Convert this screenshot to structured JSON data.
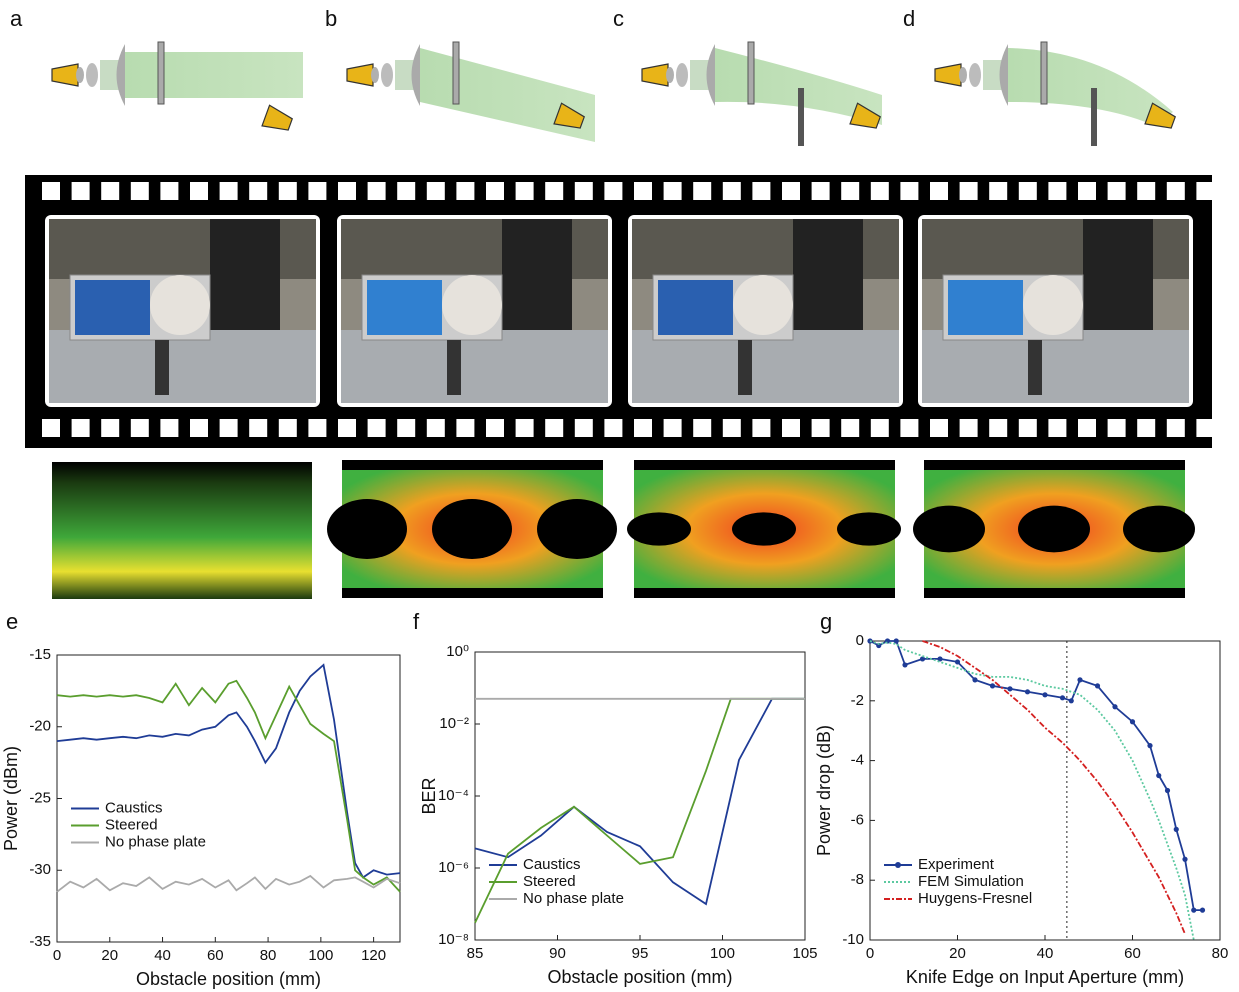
{
  "panel_labels": [
    "a",
    "b",
    "c",
    "d",
    "e",
    "f",
    "g"
  ],
  "chart_data": [
    {
      "type": "line",
      "xlabel": "Obstacle position (mm)",
      "ylabel": "Power (dBm)",
      "x": [
        0,
        5,
        10,
        15,
        20,
        25,
        30,
        35,
        40,
        45,
        50,
        55,
        60,
        65,
        68,
        72,
        75,
        79,
        83,
        88,
        92,
        96,
        101,
        105,
        110,
        113,
        116,
        120,
        125,
        130
      ],
      "xlim": [
        0,
        130
      ],
      "xticks": [
        0,
        20,
        40,
        60,
        80,
        100,
        120
      ],
      "ylim": [
        -35,
        -15
      ],
      "yticks": [
        -35,
        -30,
        -25,
        -20,
        -15
      ],
      "log": false,
      "legend": "center left",
      "series": [
        {
          "name": "Caustics",
          "color": "#1f3c96",
          "values": [
            -21,
            -20.9,
            -20.8,
            -20.9,
            -20.8,
            -20.7,
            -20.8,
            -20.6,
            -20.7,
            -20.5,
            -20.6,
            -20.2,
            -20.0,
            -19.2,
            -19.0,
            -20.0,
            -21.0,
            -22.5,
            -21.5,
            -19.0,
            -17.5,
            -16.5,
            -15.7,
            -19.5,
            -26,
            -29.5,
            -30.5,
            -30.0,
            -30.3,
            -30.2
          ]
        },
        {
          "name": "Steered",
          "color": "#5a9e2e",
          "values": [
            -17.8,
            -17.9,
            -17.8,
            -17.9,
            -17.8,
            -17.9,
            -17.8,
            -18.0,
            -18.3,
            -17.0,
            -18.5,
            -17.3,
            -18.3,
            -17.0,
            -16.8,
            -18.0,
            -19.0,
            -20.8,
            -19.2,
            -17.2,
            -18.5,
            -19.8,
            -20.5,
            -21.0,
            -26.5,
            -30.0,
            -30.5,
            -31.0,
            -30.5,
            -31.5
          ]
        },
        {
          "name": "No phase plate",
          "color": "#aaaaaa",
          "values": [
            -31.5,
            -30.8,
            -31.2,
            -30.6,
            -31.4,
            -30.9,
            -31.1,
            -30.5,
            -31.3,
            -30.8,
            -31.0,
            -30.6,
            -31.2,
            -30.7,
            -31.4,
            -30.9,
            -30.5,
            -31.3,
            -30.6,
            -31.0,
            -30.8,
            -30.4,
            -31.2,
            -30.7,
            -30.6,
            -30.5,
            -30.8,
            -31.2,
            -30.6,
            -30.9
          ]
        }
      ]
    },
    {
      "type": "line",
      "xlabel": "Obstacle position (mm)",
      "ylabel": "BER",
      "x": [
        85,
        87,
        89,
        91,
        93,
        95,
        97,
        99,
        100.5,
        101,
        103,
        105
      ],
      "xlim": [
        85,
        105
      ],
      "xticks": [
        85,
        90,
        95,
        100,
        105
      ],
      "ylim": [
        1e-08,
        1
      ],
      "log": true,
      "legend": "lower left",
      "yticks": [
        {
          "value": 1e-08,
          "label": "10⁻⁸"
        },
        {
          "value": 1e-06,
          "label": "10⁻⁶"
        },
        {
          "value": 0.0001,
          "label": "10⁻⁴"
        },
        {
          "value": 0.01,
          "label": "10⁻²"
        },
        {
          "value": 1,
          "label": "10⁰"
        }
      ],
      "series": [
        {
          "name": "Caustics",
          "color": "#1f3c96",
          "values": [
            3.5e-06,
            2e-06,
            8e-06,
            5e-05,
            1e-05,
            4e-06,
            4e-07,
            1e-07,
            0.0001,
            0.001,
            0.05,
            0.05
          ]
        },
        {
          "name": "Steered",
          "color": "#5a9e2e",
          "values": [
            3e-08,
            2.5e-06,
            1.3e-05,
            5e-05,
            8e-06,
            1.3e-06,
            2e-06,
            0.0005,
            0.05,
            0.05,
            0.05,
            0.05
          ]
        },
        {
          "name": "No phase plate",
          "color": "#aaaaaa",
          "values": [
            0.05,
            0.05,
            0.05,
            0.05,
            0.05,
            0.05,
            0.05,
            0.05,
            0.05,
            0.05,
            0.05,
            0.05
          ]
        }
      ]
    },
    {
      "type": "line",
      "xlabel": "Knife Edge on Input Aperture (mm)",
      "ylabel": "Power drop (dB)",
      "x": [
        0,
        2,
        4,
        6,
        8,
        12,
        16,
        20,
        24,
        28,
        32,
        36,
        40,
        44,
        46,
        48,
        52,
        56,
        60,
        64,
        66,
        68,
        70,
        72,
        74,
        76
      ],
      "xlim": [
        0,
        80
      ],
      "xticks": [
        0,
        20,
        40,
        60,
        80
      ],
      "ylim": [
        -10,
        0
      ],
      "yticks": [
        -10,
        -8,
        -6,
        -4,
        -2,
        0
      ],
      "log": false,
      "legend": "lower left",
      "vline_x": 45,
      "series": [
        {
          "name": "Experiment",
          "color": "#1f3c96",
          "marker": true,
          "dash": "",
          "values": [
            0,
            -0.15,
            0,
            0,
            -0.8,
            -0.6,
            -0.6,
            -0.7,
            -1.3,
            -1.5,
            -1.6,
            -1.7,
            -1.8,
            -1.9,
            -2.0,
            -1.3,
            -1.5,
            -2.2,
            -2.7,
            -3.5,
            -4.5,
            -5.0,
            -6.3,
            -7.3,
            -9.0,
            -9.0
          ]
        },
        {
          "name": "FEM Simulation",
          "color": "#5cc9a0",
          "marker": false,
          "dash": "2 2",
          "values": [
            0,
            -0.1,
            -0.05,
            -0.1,
            -0.3,
            -0.5,
            -0.7,
            -0.9,
            -1.1,
            -1.2,
            -1.2,
            -1.3,
            -1.5,
            -1.6,
            -1.7,
            -1.8,
            -2.3,
            -3.0,
            -4.0,
            -5.3,
            -6.0,
            -6.8,
            -7.6,
            -8.5,
            -10,
            null
          ]
        },
        {
          "name": "Huygens-Fresnel",
          "color": "#d42020",
          "marker": false,
          "dash": "6 2 2 2",
          "values": [
            null,
            null,
            null,
            null,
            null,
            0,
            -0.2,
            -0.5,
            -0.9,
            -1.3,
            -1.8,
            -2.3,
            -2.9,
            -3.4,
            -3.7,
            -4.0,
            -4.7,
            -5.5,
            -6.4,
            -7.4,
            -7.9,
            -8.5,
            -9.1,
            -9.8,
            null,
            null
          ]
        }
      ]
    }
  ]
}
